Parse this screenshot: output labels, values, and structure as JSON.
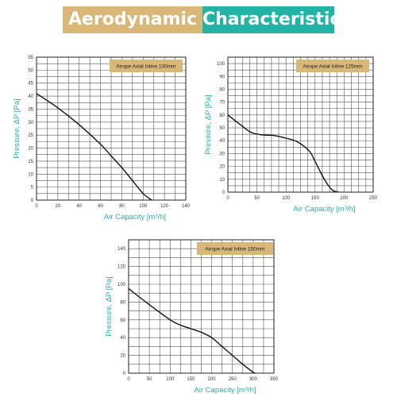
{
  "header": {
    "title_part_1": "Aerodynamic",
    "title_part_2": "Characteristics",
    "colors": {
      "gold": "#d8b777",
      "teal": "#22b3a6"
    }
  },
  "chart_data": [
    {
      "type": "line",
      "title": "Airope Axial Inline 100mm",
      "xlabel": "Air Capacity [m³/h]",
      "ylabel": "Pressure, ΔP [Pa]",
      "xlim": [
        0,
        140
      ],
      "ylim": [
        0,
        55
      ],
      "xticks": [
        0,
        20,
        40,
        60,
        80,
        100,
        120,
        140
      ],
      "yticks": [
        0,
        5,
        10,
        15,
        20,
        25,
        30,
        35,
        40,
        45,
        50,
        55
      ],
      "xgrid": 10,
      "ygrid": 2.5,
      "series": [
        {
          "x": [
            0,
            20,
            40,
            60,
            70,
            80,
            90,
            100,
            108
          ],
          "y": [
            41,
            35.5,
            29,
            21.5,
            17,
            12.5,
            7.5,
            2.5,
            0
          ]
        }
      ]
    },
    {
      "type": "line",
      "title": "Airope Axial Inline 125mm",
      "xlabel": "Air Capacity [m³/h]",
      "ylabel": "Pressure, ΔP [Pa]",
      "xlim": [
        0,
        250
      ],
      "ylim": [
        0,
        105
      ],
      "xticks": [
        0,
        50,
        100,
        150,
        200,
        250
      ],
      "yticks": [
        0,
        10,
        20,
        30,
        40,
        50,
        60,
        70,
        80,
        90,
        100
      ],
      "xgrid": 12.5,
      "ygrid": 5,
      "series": [
        {
          "x": [
            0,
            20,
            40,
            60,
            80,
            100,
            120,
            140,
            150,
            160,
            170,
            180,
            190
          ],
          "y": [
            60,
            53,
            46.5,
            44.5,
            44,
            42,
            39,
            32,
            24,
            15,
            7,
            1.5,
            0
          ]
        }
      ]
    },
    {
      "type": "line",
      "title": "Airope Axial Inline 150mm",
      "xlabel": "Air Capacity [m³/h]",
      "ylabel": "Pressure, ΔP [Pa]",
      "xlim": [
        0,
        350
      ],
      "ylim": [
        0,
        150
      ],
      "xticks": [
        0,
        50,
        100,
        150,
        200,
        250,
        300,
        350
      ],
      "yticks": [
        0,
        20,
        40,
        60,
        80,
        100,
        120,
        140
      ],
      "xgrid": 25,
      "ygrid": 10,
      "series": [
        {
          "x": [
            0,
            50,
            100,
            125,
            150,
            175,
            200,
            225,
            250,
            275,
            300,
            305
          ],
          "y": [
            95,
            77,
            60,
            54,
            50,
            46,
            40,
            30,
            20,
            10,
            1,
            0
          ]
        }
      ]
    }
  ]
}
